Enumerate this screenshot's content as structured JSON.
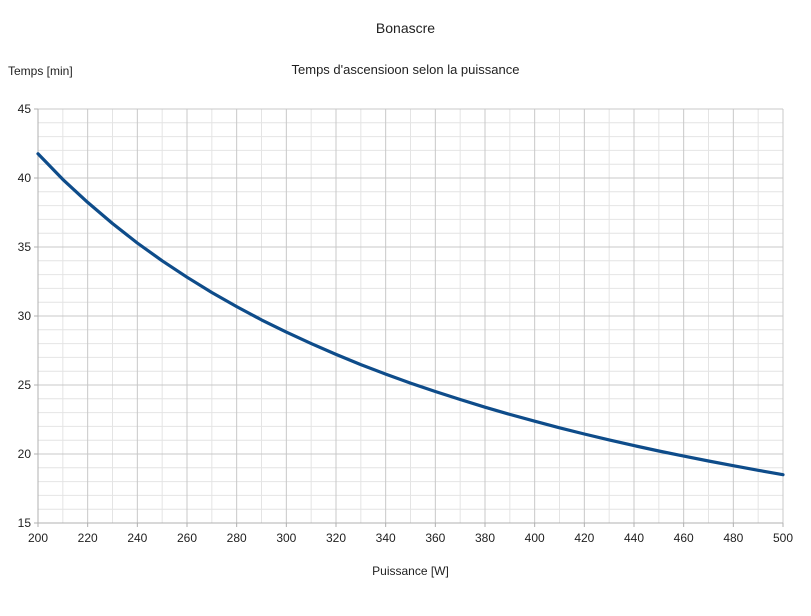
{
  "chart_data": {
    "type": "line",
    "title": "Bonascre",
    "subtitle": "Temps d'ascensioon selon la puissance",
    "xlabel": "Puissance [W]",
    "ylabel": "Temps [min]",
    "xlim": [
      200,
      500
    ],
    "ylim": [
      15,
      45
    ],
    "x_ticks": [
      200,
      220,
      240,
      260,
      280,
      300,
      320,
      340,
      360,
      380,
      400,
      420,
      440,
      460,
      480,
      500
    ],
    "y_ticks": [
      15,
      20,
      25,
      30,
      35,
      40,
      45
    ],
    "x_minor_step": 10,
    "y_minor_step": 1,
    "grid": true,
    "legend": false,
    "colors": {
      "line": "#0e4c8a",
      "grid_major": "#c8c8c8",
      "grid_minor": "#e4e4e4",
      "axis": "#b0b0b0",
      "text": "#1f1f1f",
      "background": "#ffffff"
    },
    "x": [
      200,
      210,
      220,
      230,
      240,
      250,
      260,
      270,
      280,
      290,
      300,
      310,
      320,
      330,
      340,
      350,
      360,
      370,
      380,
      390,
      400,
      410,
      420,
      430,
      440,
      450,
      460,
      470,
      480,
      490,
      500
    ],
    "y": [
      41.75,
      39.9,
      38.23,
      36.7,
      35.29,
      34.0,
      32.81,
      31.7,
      30.68,
      29.72,
      28.83,
      28.0,
      27.22,
      26.48,
      25.79,
      25.14,
      24.53,
      23.95,
      23.39,
      22.87,
      22.38,
      21.9,
      21.45,
      21.02,
      20.61,
      20.22,
      19.85,
      19.49,
      19.15,
      18.82,
      18.5
    ]
  }
}
